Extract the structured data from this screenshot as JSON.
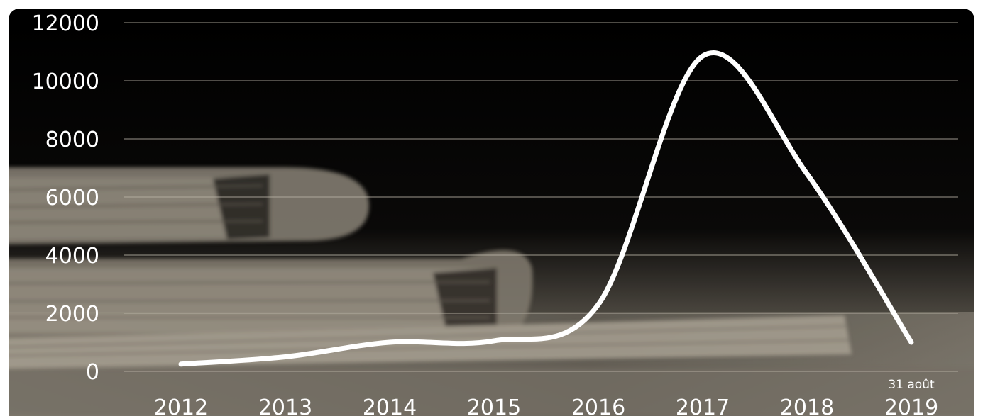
{
  "chart_data": {
    "type": "line",
    "title": "",
    "xlabel": "",
    "ylabel": "",
    "categories": [
      "2012",
      "2013",
      "2014",
      "2015",
      "2016",
      "2017",
      "2018",
      "2019"
    ],
    "x_annotations": {
      "2019": "31 août"
    },
    "y_ticks": [
      "0",
      "2000",
      "4000",
      "6000",
      "8000",
      "10000",
      "12000"
    ],
    "ylim": [
      0,
      12000
    ],
    "grid": true,
    "legend": "none",
    "series": [
      {
        "values": [
          250,
          500,
          1000,
          1050,
          2300,
          10850,
          6800,
          1000
        ]
      }
    ],
    "colors": {
      "line": "#ffffff",
      "grid": "#b9b3a6",
      "background": "#000000",
      "photo_tone": "#9a9284"
    }
  }
}
